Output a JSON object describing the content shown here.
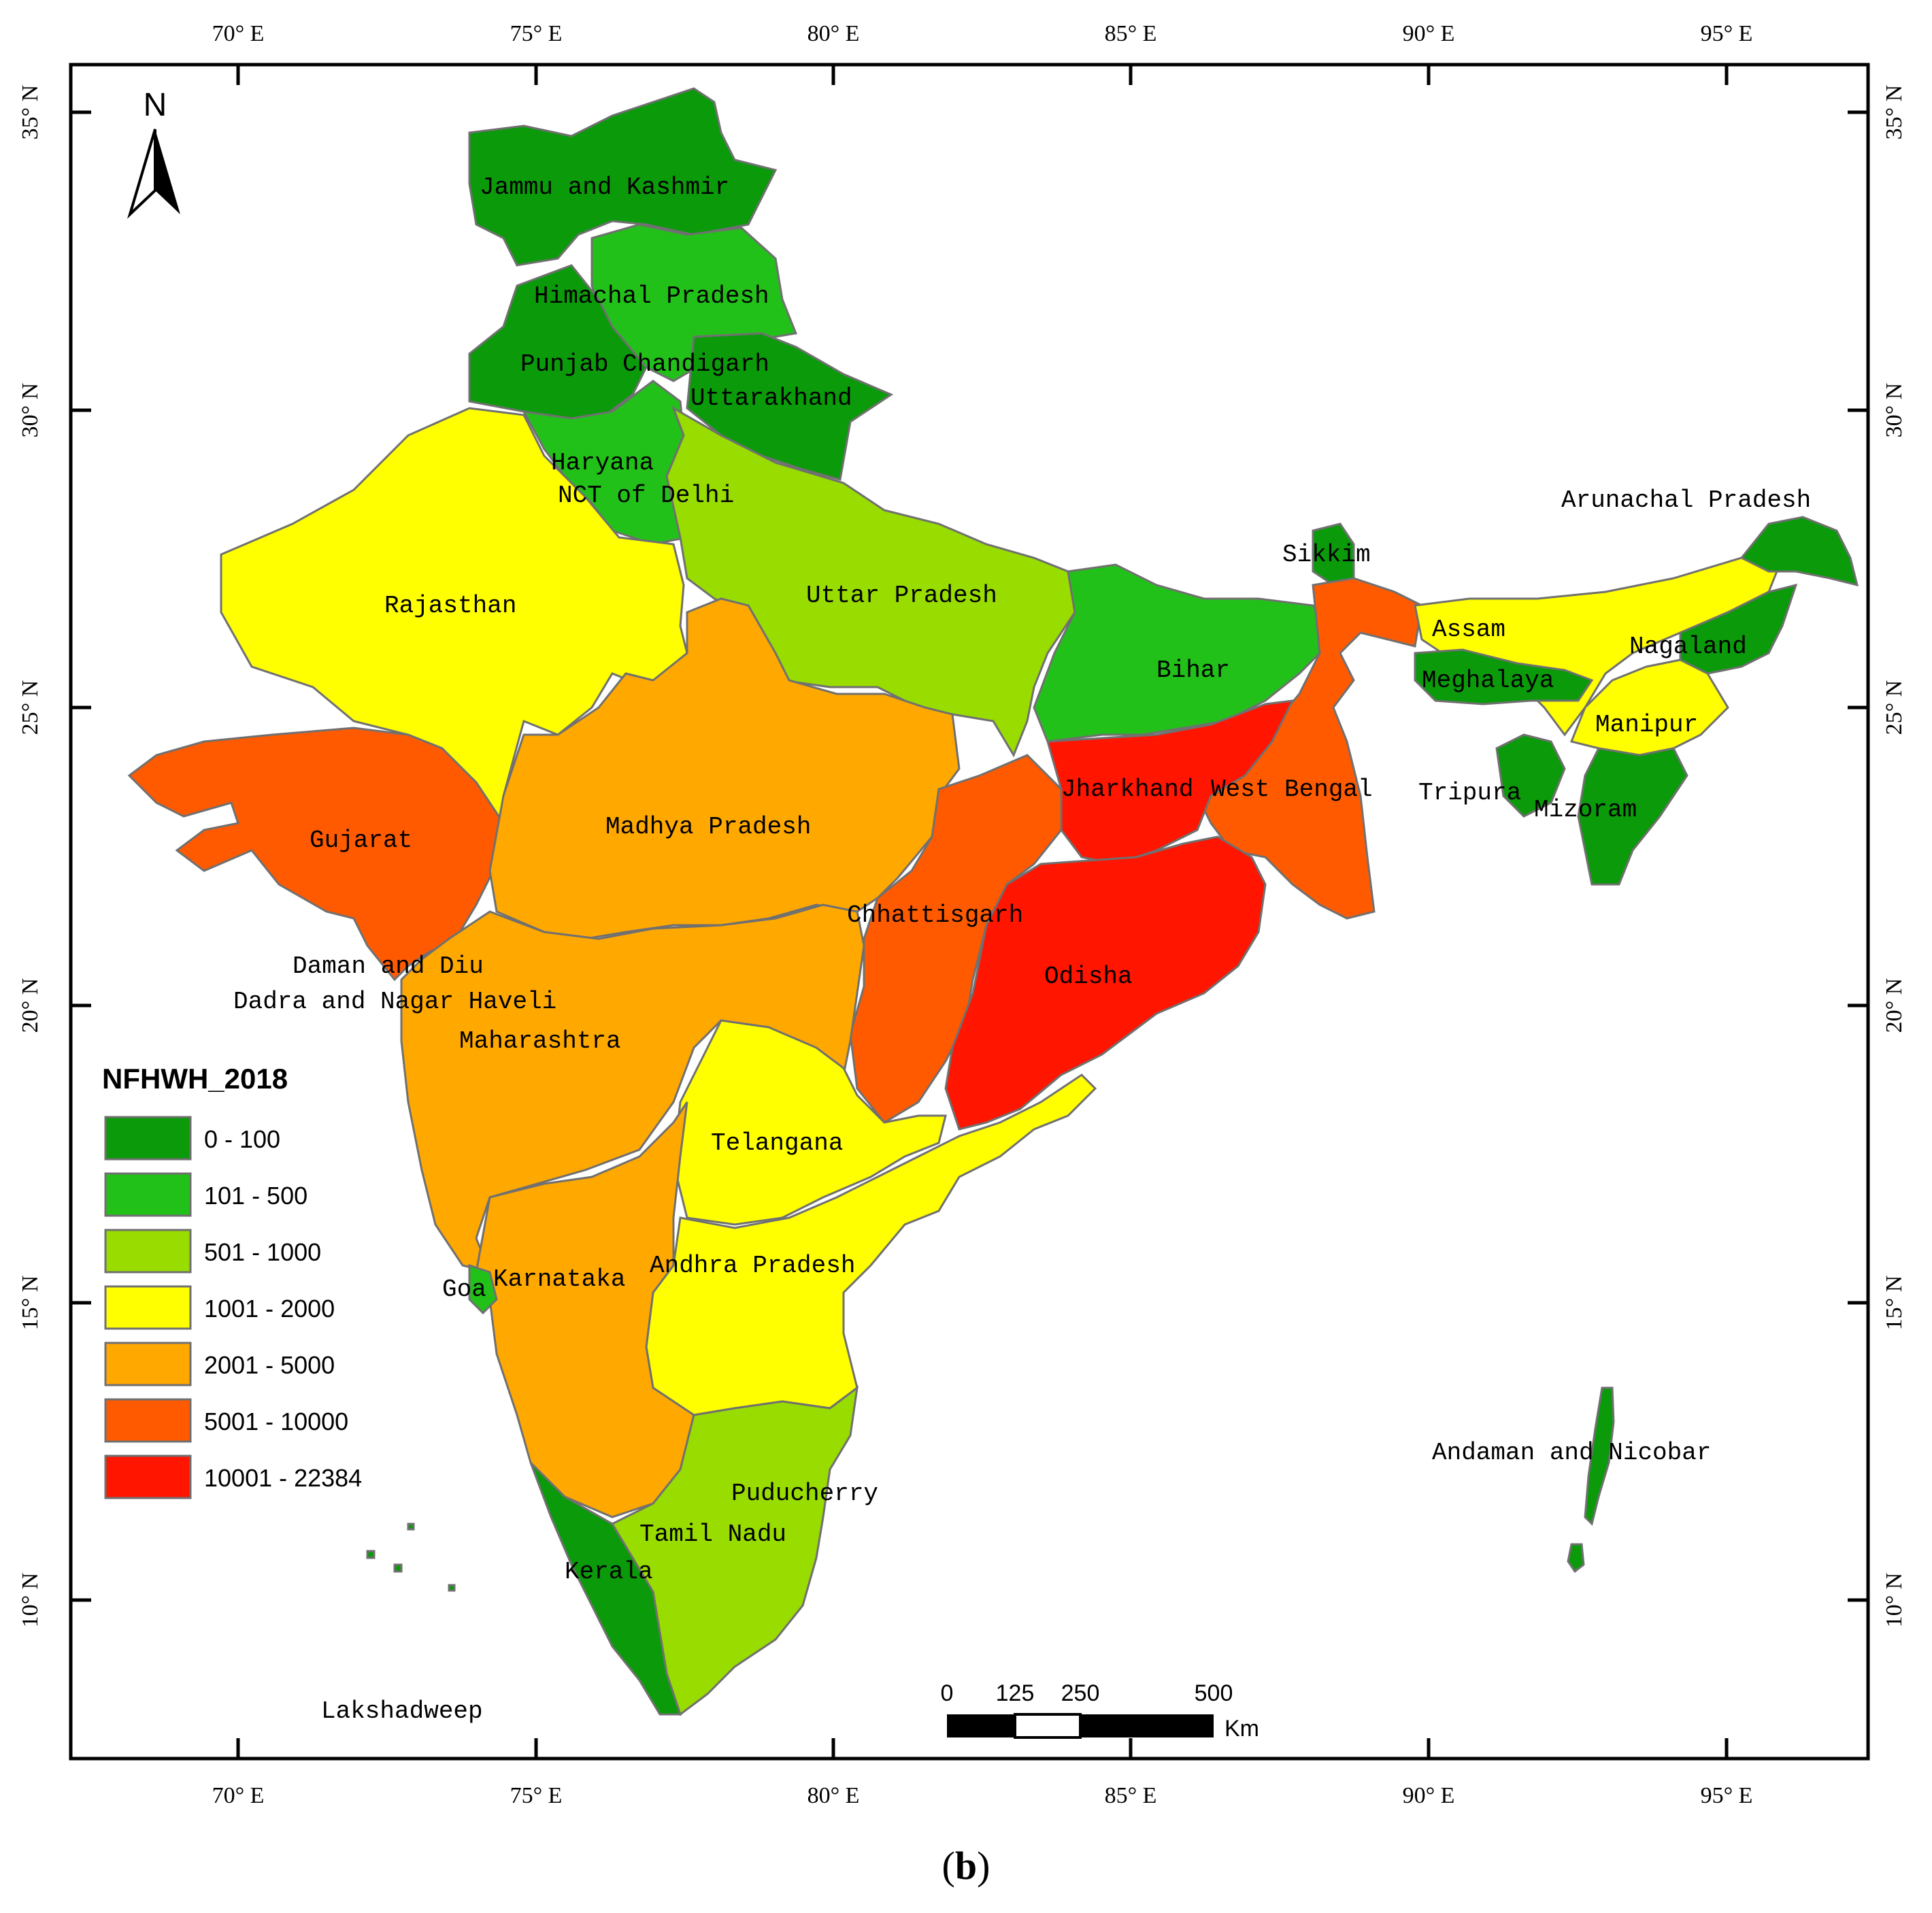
{
  "legend": {
    "title": "NFHWH_2018",
    "classes": [
      {
        "label": "0 - 100",
        "color": "#0a9a0a"
      },
      {
        "label": "101 - 500",
        "color": "#22c11a"
      },
      {
        "label": "501 - 1000",
        "color": "#98dc00"
      },
      {
        "label": "1001 - 2000",
        "color": "#ffff00"
      },
      {
        "label": "2001 - 5000",
        "color": "#ffa800"
      },
      {
        "label": "5001 - 10000",
        "color": "#ff5a00"
      },
      {
        "label": "10001 - 22384",
        "color": "#ff1500"
      }
    ]
  },
  "north_arrow": {
    "label": "N"
  },
  "axes": {
    "lon_labels": [
      "70°  E",
      "75°  E",
      "80°  E",
      "85°  E",
      "90°  E",
      "95°  E"
    ],
    "lat_labels": [
      "35°  N",
      "30°  N",
      "25°  N",
      "20°  N",
      "15°  N",
      "10°  N"
    ]
  },
  "scale_bar": {
    "ticks": [
      "0",
      "125",
      "250",
      "500"
    ],
    "unit": "Km"
  },
  "caption": {
    "open": "(",
    "letter": "b",
    "close": ")"
  },
  "states": [
    {
      "name": "Jammu and Kashmir",
      "class": 0
    },
    {
      "name": "Himachal Pradesh",
      "class": 1
    },
    {
      "name": "Punjab",
      "class": 0
    },
    {
      "name": "Chandigarh",
      "class": 0
    },
    {
      "name": "Uttarakhand",
      "class": 0
    },
    {
      "name": "Haryana",
      "class": 1
    },
    {
      "name": "NCT of Delhi",
      "class": 1
    },
    {
      "name": "Rajasthan",
      "class": 3
    },
    {
      "name": "Uttar Pradesh",
      "class": 2
    },
    {
      "name": "Bihar",
      "class": 1
    },
    {
      "name": "Sikkim",
      "class": 0
    },
    {
      "name": "Arunachal Pradesh",
      "class": 0
    },
    {
      "name": "Assam",
      "class": 3
    },
    {
      "name": "Meghalaya",
      "class": 0
    },
    {
      "name": "Nagaland",
      "class": 0
    },
    {
      "name": "Manipur",
      "class": 3
    },
    {
      "name": "Mizoram",
      "class": 0
    },
    {
      "name": "Tripura",
      "class": 0
    },
    {
      "name": "Gujarat",
      "class": 5
    },
    {
      "name": "Madhya Pradesh",
      "class": 4
    },
    {
      "name": "Jharkhand",
      "class": 6
    },
    {
      "name": "West Bengal",
      "class": 5
    },
    {
      "name": "Chhattisgarh",
      "class": 5
    },
    {
      "name": "Odisha",
      "class": 6
    },
    {
      "name": "Daman and Diu",
      "class": 4
    },
    {
      "name": "Dadra and Nagar Haveli",
      "class": 4
    },
    {
      "name": "Maharashtra",
      "class": 4
    },
    {
      "name": "Telangana",
      "class": 3
    },
    {
      "name": "Goa",
      "class": 1
    },
    {
      "name": "Karnataka",
      "class": 4
    },
    {
      "name": "Andhra Pradesh",
      "class": 3
    },
    {
      "name": "Puducherry",
      "class": 2
    },
    {
      "name": "Tamil Nadu",
      "class": 2
    },
    {
      "name": "Kerala",
      "class": 0
    },
    {
      "name": "Andaman and Nicobar",
      "class": 0
    },
    {
      "name": "Lakshadweep",
      "class": 0
    }
  ]
}
